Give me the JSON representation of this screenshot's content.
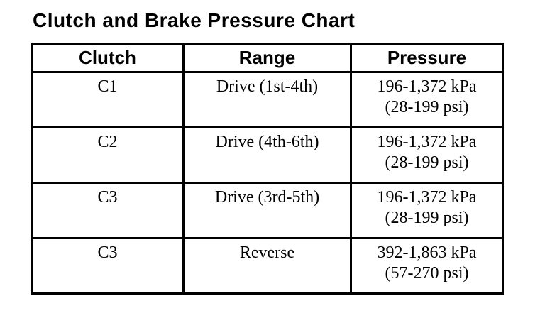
{
  "page": {
    "title": "Clutch and Brake Pressure Chart"
  },
  "table": {
    "headers": {
      "clutch": "Clutch",
      "range": "Range",
      "pressure": "Pressure"
    },
    "rows": [
      {
        "clutch": "C1",
        "range": "Drive (1st-4th)",
        "pressure_kpa": "196-1,372 kPa",
        "pressure_psi": "(28-199 psi)"
      },
      {
        "clutch": "C2",
        "range": "Drive (4th-6th)",
        "pressure_kpa": "196-1,372 kPa",
        "pressure_psi": "(28-199 psi)"
      },
      {
        "clutch": "C3",
        "range": "Drive (3rd-5th)",
        "pressure_kpa": "196-1,372 kPa",
        "pressure_psi": "(28-199 psi)"
      },
      {
        "clutch": "C3",
        "range": "Reverse",
        "pressure_kpa": "392-1,863 kPa",
        "pressure_psi": "(57-270 psi)"
      }
    ]
  },
  "colors": {
    "text": "#000000",
    "border": "#000000",
    "background": "#ffffff"
  }
}
